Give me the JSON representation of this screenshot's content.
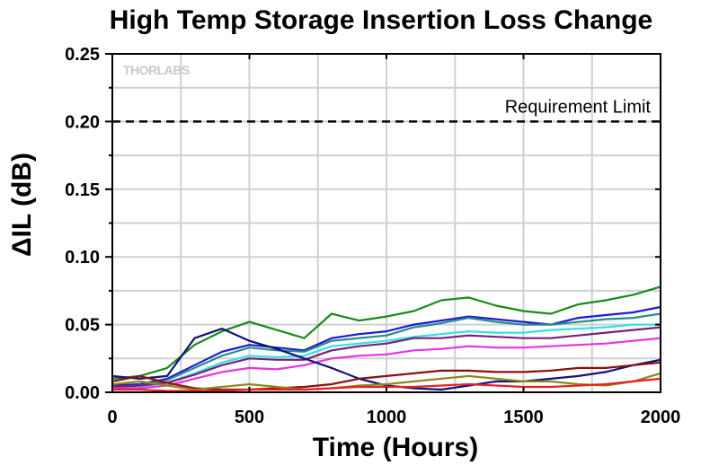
{
  "chart_data": {
    "type": "line",
    "title": "High Temp Storage Insertion Loss Change",
    "xlabel": "Time (Hours)",
    "ylabel": "ΔIL (dB)",
    "xlim": [
      0,
      2000
    ],
    "ylim": [
      0,
      0.25
    ],
    "x_ticks": [
      "0",
      "500",
      "1000",
      "1500",
      "2000"
    ],
    "y_ticks": [
      "0.00",
      "0.05",
      "0.10",
      "0.15",
      "0.20",
      "0.25"
    ],
    "grid": true,
    "logo": "THORLABS",
    "reference_line": {
      "label": "Requirement Limit",
      "y": 0.2,
      "style": "dashed",
      "color": "#000000"
    },
    "series": [
      {
        "color": "#1a8a1a",
        "x": [
          0,
          100,
          200,
          300,
          400,
          500,
          600,
          700,
          800,
          900,
          1000,
          1100,
          1200,
          1300,
          1400,
          1500,
          1600,
          1700,
          1800,
          1900,
          2000
        ],
        "values": [
          0.01,
          0.012,
          0.018,
          0.035,
          0.045,
          0.052,
          0.046,
          0.04,
          0.058,
          0.053,
          0.056,
          0.06,
          0.068,
          0.07,
          0.064,
          0.06,
          0.058,
          0.065,
          0.068,
          0.072,
          0.078
        ]
      },
      {
        "color": "#1b1bd4",
        "x": [
          0,
          100,
          200,
          300,
          400,
          500,
          600,
          700,
          800,
          900,
          1000,
          1100,
          1200,
          1300,
          1400,
          1500,
          1600,
          1700,
          1800,
          1900,
          2000
        ],
        "values": [
          0.005,
          0.006,
          0.01,
          0.02,
          0.03,
          0.035,
          0.033,
          0.031,
          0.04,
          0.043,
          0.045,
          0.05,
          0.053,
          0.056,
          0.054,
          0.052,
          0.05,
          0.055,
          0.057,
          0.059,
          0.063
        ]
      },
      {
        "color": "#2a8c8c",
        "x": [
          0,
          100,
          200,
          300,
          400,
          500,
          600,
          700,
          800,
          900,
          1000,
          1100,
          1200,
          1300,
          1400,
          1500,
          1600,
          1700,
          1800,
          1900,
          2000
        ],
        "values": [
          0.004,
          0.005,
          0.009,
          0.018,
          0.027,
          0.033,
          0.031,
          0.03,
          0.038,
          0.04,
          0.042,
          0.048,
          0.051,
          0.055,
          0.052,
          0.05,
          0.05,
          0.052,
          0.054,
          0.055,
          0.058
        ]
      },
      {
        "color": "#33e0e8",
        "x": [
          0,
          100,
          200,
          300,
          400,
          500,
          600,
          700,
          800,
          900,
          1000,
          1100,
          1200,
          1300,
          1400,
          1500,
          1600,
          1700,
          1800,
          1900,
          2000
        ],
        "values": [
          0.004,
          0.004,
          0.007,
          0.014,
          0.022,
          0.027,
          0.026,
          0.027,
          0.034,
          0.036,
          0.038,
          0.041,
          0.043,
          0.045,
          0.044,
          0.044,
          0.046,
          0.047,
          0.048,
          0.05,
          0.05
        ]
      },
      {
        "color": "#7a1f7a",
        "x": [
          0,
          100,
          200,
          300,
          400,
          500,
          600,
          700,
          800,
          900,
          1000,
          1100,
          1200,
          1300,
          1400,
          1500,
          1600,
          1700,
          1800,
          1900,
          2000
        ],
        "values": [
          0.004,
          0.005,
          0.007,
          0.013,
          0.02,
          0.025,
          0.024,
          0.024,
          0.031,
          0.034,
          0.036,
          0.04,
          0.04,
          0.042,
          0.041,
          0.04,
          0.04,
          0.042,
          0.044,
          0.046,
          0.048
        ]
      },
      {
        "color": "#e632e6",
        "x": [
          0,
          100,
          200,
          300,
          400,
          500,
          600,
          700,
          800,
          900,
          1000,
          1100,
          1200,
          1300,
          1400,
          1500,
          1600,
          1700,
          1800,
          1900,
          2000
        ],
        "values": [
          0.003,
          0.003,
          0.005,
          0.01,
          0.015,
          0.018,
          0.017,
          0.02,
          0.025,
          0.027,
          0.028,
          0.031,
          0.032,
          0.034,
          0.033,
          0.033,
          0.034,
          0.035,
          0.036,
          0.038,
          0.04
        ]
      },
      {
        "color": "#12127a",
        "x": [
          0,
          100,
          200,
          300,
          400,
          500,
          600,
          700,
          800,
          900,
          1000,
          1100,
          1200,
          1300,
          1400,
          1500,
          1600,
          1700,
          1800,
          1900,
          2000
        ],
        "values": [
          0.012,
          0.01,
          0.012,
          0.04,
          0.047,
          0.038,
          0.032,
          0.025,
          0.018,
          0.01,
          0.005,
          0.003,
          0.002,
          0.005,
          0.008,
          0.008,
          0.01,
          0.012,
          0.015,
          0.02,
          0.024
        ]
      },
      {
        "color": "#8a1010",
        "x": [
          0,
          100,
          200,
          300,
          400,
          500,
          600,
          700,
          800,
          900,
          1000,
          1100,
          1200,
          1300,
          1400,
          1500,
          1600,
          1700,
          1800,
          1900,
          2000
        ],
        "values": [
          0.008,
          0.012,
          0.007,
          0.003,
          0.002,
          0.002,
          0.003,
          0.004,
          0.006,
          0.01,
          0.012,
          0.014,
          0.016,
          0.016,
          0.015,
          0.015,
          0.016,
          0.018,
          0.018,
          0.02,
          0.022
        ]
      },
      {
        "color": "#8a8a1a",
        "x": [
          0,
          100,
          200,
          300,
          400,
          500,
          600,
          700,
          800,
          900,
          1000,
          1100,
          1200,
          1300,
          1400,
          1500,
          1600,
          1700,
          1800,
          1900,
          2000
        ],
        "values": [
          0.006,
          0.008,
          0.005,
          0.002,
          0.004,
          0.006,
          0.004,
          0.002,
          0.003,
          0.005,
          0.006,
          0.008,
          0.01,
          0.012,
          0.01,
          0.008,
          0.008,
          0.006,
          0.005,
          0.008,
          0.014
        ]
      },
      {
        "color": "#e82020",
        "x": [
          0,
          100,
          200,
          300,
          400,
          500,
          600,
          700,
          800,
          900,
          1000,
          1100,
          1200,
          1300,
          1400,
          1500,
          1600,
          1700,
          1800,
          1900,
          2000
        ],
        "values": [
          0.002,
          0.002,
          0.001,
          0.001,
          0.001,
          0.002,
          0.002,
          0.002,
          0.003,
          0.004,
          0.004,
          0.004,
          0.005,
          0.006,
          0.005,
          0.004,
          0.004,
          0.005,
          0.006,
          0.008,
          0.01
        ]
      }
    ]
  }
}
